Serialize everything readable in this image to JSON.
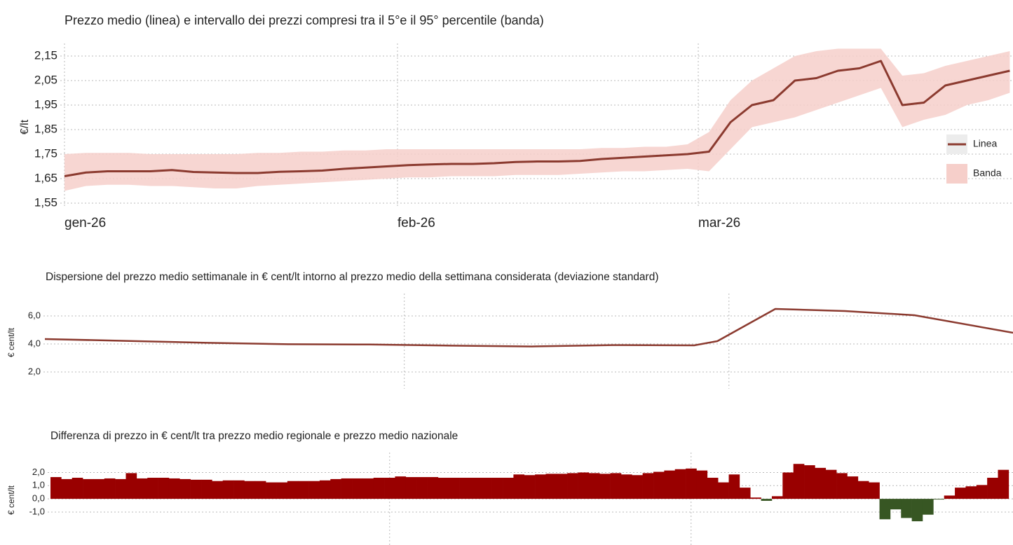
{
  "chart_data": [
    {
      "type": "line",
      "title": "Prezzo medio (linea) e intervallo dei prezzi compresi tra il 5°e il 95° percentile (banda)",
      "y_label": "€/lt",
      "x": [
        0,
        2,
        4,
        6,
        8,
        10,
        12,
        14,
        16,
        18,
        20,
        22,
        24,
        26,
        28,
        30,
        32,
        34,
        36,
        38,
        40,
        42,
        44,
        46,
        48,
        50,
        52,
        54,
        56,
        58,
        60,
        62,
        64,
        66,
        68,
        70,
        72,
        74,
        76,
        78,
        80,
        82,
        84,
        86,
        88
      ],
      "series": [
        {
          "name": "Linea",
          "color": "#8b3a2f",
          "values": [
            1.66,
            1.675,
            1.68,
            1.68,
            1.68,
            1.685,
            1.677,
            1.675,
            1.673,
            1.673,
            1.678,
            1.68,
            1.683,
            1.69,
            1.695,
            1.7,
            1.705,
            1.708,
            1.71,
            1.71,
            1.713,
            1.718,
            1.72,
            1.72,
            1.722,
            1.73,
            1.735,
            1.74,
            1.745,
            1.75,
            1.76,
            1.88,
            1.95,
            1.97,
            2.05,
            2.06,
            2.09,
            2.1,
            2.13,
            1.95,
            1.96,
            2.03,
            2.05,
            2.07,
            2.09
          ]
        },
        {
          "name": "Banda",
          "color": "#f6cfca",
          "low": [
            1.6,
            1.62,
            1.625,
            1.625,
            1.62,
            1.62,
            1.615,
            1.61,
            1.61,
            1.62,
            1.625,
            1.63,
            1.635,
            1.64,
            1.645,
            1.65,
            1.655,
            1.655,
            1.66,
            1.66,
            1.66,
            1.665,
            1.665,
            1.665,
            1.67,
            1.675,
            1.68,
            1.68,
            1.685,
            1.69,
            1.68,
            1.77,
            1.86,
            1.88,
            1.9,
            1.93,
            1.96,
            1.99,
            2.02,
            1.86,
            1.89,
            1.91,
            1.95,
            1.97,
            2.0
          ],
          "high": [
            1.75,
            1.755,
            1.755,
            1.755,
            1.75,
            1.75,
            1.75,
            1.75,
            1.75,
            1.755,
            1.755,
            1.76,
            1.76,
            1.765,
            1.765,
            1.77,
            1.77,
            1.77,
            1.77,
            1.77,
            1.77,
            1.77,
            1.77,
            1.77,
            1.77,
            1.775,
            1.775,
            1.78,
            1.78,
            1.79,
            1.84,
            1.97,
            2.05,
            2.1,
            2.15,
            2.17,
            2.18,
            2.18,
            2.18,
            2.07,
            2.08,
            2.11,
            2.13,
            2.15,
            2.17
          ]
        }
      ],
      "xlim": [
        0,
        88.3
      ],
      "xticks": [
        {
          "value": 0,
          "label": "gen-26"
        },
        {
          "value": 31,
          "label": "feb-26"
        },
        {
          "value": 59,
          "label": "mar-26"
        }
      ],
      "xtick_labels": true,
      "ylim": [
        1.53,
        2.19
      ],
      "yticks": [
        {
          "value": 1.55,
          "label": "1,55"
        },
        {
          "value": 1.65,
          "label": "1,65"
        },
        {
          "value": 1.75,
          "label": "1,75"
        },
        {
          "value": 1.85,
          "label": "1,85"
        },
        {
          "value": 1.95,
          "label": "1,95"
        },
        {
          "value": 2.05,
          "label": "2,05"
        },
        {
          "value": 2.15,
          "label": "2,15"
        }
      ],
      "grid": true,
      "legend": "right"
    },
    {
      "type": "line",
      "title": "Dispersione del prezzo medio settimanale in € cent/lt intorno al prezzo medio della settimana considerata (deviazione standard)",
      "y_label": "€ cent/lt",
      "x": [
        0,
        7,
        14,
        21,
        28,
        35,
        42,
        49,
        56,
        58,
        63,
        69,
        75,
        83.5
      ],
      "series": [
        {
          "color": "#8b3a2f",
          "values": [
            4.35,
            4.22,
            4.08,
            3.98,
            3.96,
            3.88,
            3.82,
            3.92,
            3.9,
            4.2,
            6.5,
            6.35,
            6.05,
            4.8
          ]
        }
      ],
      "xlim": [
        0,
        83.5
      ],
      "xticks": [
        31,
        59
      ],
      "xtick_labels": false,
      "ylim": [
        0.8,
        7.4
      ],
      "yticks": [
        {
          "value": 2,
          "label": "2,0"
        },
        {
          "value": 4,
          "label": "4,0"
        },
        {
          "value": 6,
          "label": "6,0"
        }
      ],
      "grid": true
    },
    {
      "type": "bar",
      "title": "Differenza di prezzo in € cent/lt tra prezzo medio regionale e prezzo medio nazionale",
      "y_label": "€ cent/lt",
      "x": [
        0,
        1,
        2,
        3,
        4,
        5,
        6,
        7,
        8,
        9,
        10,
        11,
        12,
        13,
        14,
        15,
        16,
        17,
        18,
        19,
        20,
        21,
        22,
        23,
        24,
        25,
        26,
        27,
        28,
        29,
        30,
        31,
        32,
        33,
        34,
        35,
        36,
        37,
        38,
        39,
        40,
        41,
        42,
        43,
        44,
        45,
        46,
        47,
        48,
        49,
        50,
        51,
        52,
        53,
        54,
        55,
        56,
        57,
        58,
        59,
        60,
        61,
        62,
        63,
        64,
        65,
        66,
        67,
        68,
        69,
        70,
        71,
        72,
        73,
        74,
        75,
        76,
        77,
        78,
        79,
        80,
        81,
        82,
        83,
        84,
        85,
        86,
        87,
        88
      ],
      "values": [
        1.65,
        1.5,
        1.6,
        1.5,
        1.5,
        1.55,
        1.5,
        1.95,
        1.55,
        1.6,
        1.6,
        1.55,
        1.5,
        1.45,
        1.45,
        1.35,
        1.4,
        1.4,
        1.35,
        1.35,
        1.25,
        1.25,
        1.35,
        1.35,
        1.35,
        1.4,
        1.5,
        1.55,
        1.55,
        1.55,
        1.6,
        1.6,
        1.7,
        1.65,
        1.65,
        1.65,
        1.6,
        1.6,
        1.6,
        1.6,
        1.6,
        1.6,
        1.6,
        1.85,
        1.8,
        1.85,
        1.9,
        1.9,
        1.95,
        2.0,
        1.95,
        1.9,
        1.95,
        1.85,
        1.8,
        1.95,
        2.05,
        2.15,
        2.25,
        2.3,
        2.15,
        1.6,
        1.25,
        1.85,
        0.85,
        0.1,
        -0.15,
        0.2,
        2.0,
        2.65,
        2.55,
        2.35,
        2.2,
        1.95,
        1.7,
        1.35,
        1.25,
        -1.55,
        -0.8,
        -1.45,
        -1.7,
        -1.2,
        -0.05,
        0.25,
        0.85,
        0.95,
        1.05,
        1.6,
        2.2
      ],
      "positive_color": "#990000",
      "negative_color": "#375623",
      "xlim": [
        -0.5,
        88.9
      ],
      "xticks": [
        31,
        59
      ],
      "xtick_labels": false,
      "ylim": [
        -3.5,
        3.3
      ],
      "yticks": [
        {
          "value": -1,
          "label": "-1,0"
        },
        {
          "value": 0,
          "label": "0,0"
        },
        {
          "value": 1,
          "label": "1,0"
        },
        {
          "value": 2,
          "label": "2,0"
        }
      ],
      "grid": true
    }
  ]
}
